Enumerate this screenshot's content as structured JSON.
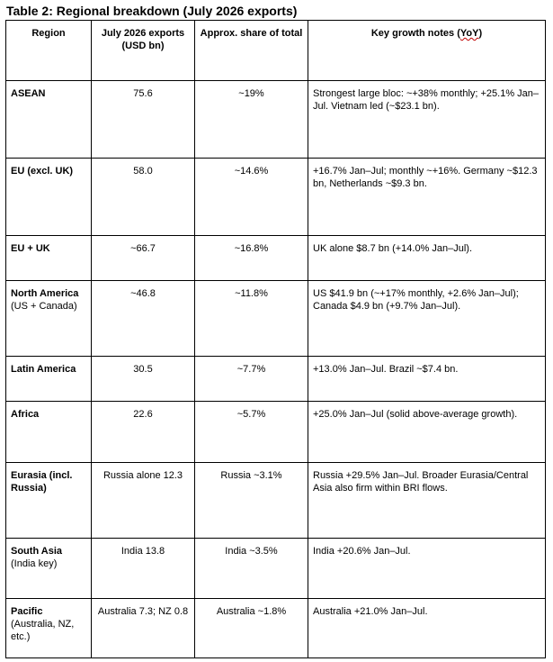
{
  "title": "Table 2: Regional breakdown (July 2026 exports)",
  "headers": {
    "region": "Region",
    "exports": "July 2026 exports (USD bn)",
    "share": "Approx. share of total",
    "notes_prefix": "Key growth notes (",
    "notes_yoy": "YoY",
    "notes_suffix": ")"
  },
  "rows": [
    {
      "region": "ASEAN",
      "region_sub": "",
      "exports": "75.6",
      "share": "~19%",
      "notes": "Strongest large bloc: ~+38% monthly; +25.1% Jan–Jul. Vietnam led (~$23.1 bn)."
    },
    {
      "region": "EU (excl. UK)",
      "region_sub": "",
      "exports": "58.0",
      "share": "~14.6%",
      "notes": "+16.7% Jan–Jul; monthly ~+16%. Germany ~$12.3 bn, Netherlands ~$9.3 bn."
    },
    {
      "region": "EU + UK",
      "region_sub": "",
      "exports": "~66.7",
      "share": "~16.8%",
      "notes": "UK alone $8.7 bn (+14.0% Jan–Jul)."
    },
    {
      "region": "North America",
      "region_sub": " (US + Canada)",
      "exports": "~46.8",
      "share": "~11.8%",
      "notes": "US $41.9 bn (~+17% monthly, +2.6% Jan–Jul); Canada $4.9 bn (+9.7% Jan–Jul)."
    },
    {
      "region": "Latin America",
      "region_sub": "",
      "exports": "30.5",
      "share": "~7.7%",
      "notes": "+13.0% Jan–Jul. Brazil ~$7.4 bn."
    },
    {
      "region": "Africa",
      "region_sub": "",
      "exports": "22.6",
      "share": "~5.7%",
      "notes": "+25.0% Jan–Jul (solid above-average growth)."
    },
    {
      "region": "Eurasia (incl. Russia)",
      "region_sub": "",
      "exports": "Russia alone 12.3",
      "share": "Russia ~3.1%",
      "notes": "Russia +29.5% Jan–Jul. Broader Eurasia/Central Asia also firm within BRI flows."
    },
    {
      "region": "South Asia",
      "region_sub": " (India key)",
      "exports": "India 13.8",
      "share": "India ~3.5%",
      "notes": "India +20.6% Jan–Jul."
    },
    {
      "region": "Pacific",
      "region_sub": " (Australia, NZ, etc.)",
      "exports": "Australia 7.3; NZ 0.8",
      "share": "Australia ~1.8%",
      "notes": "Australia +21.0% Jan–Jul."
    }
  ]
}
